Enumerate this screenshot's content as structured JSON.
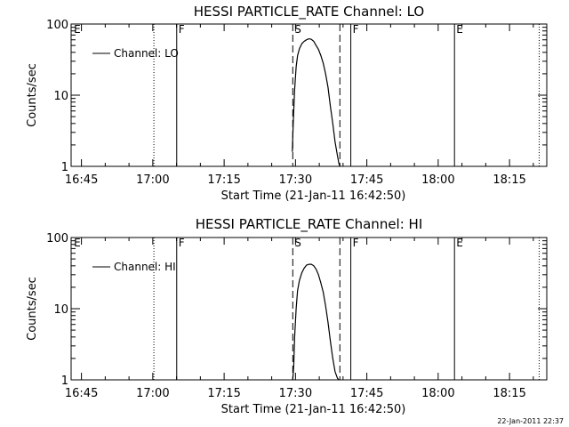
{
  "timestamp": "22-Jan-2011 22:37",
  "chart_data": [
    {
      "type": "line",
      "title": "HESSI PARTICLE_RATE Channel: LO",
      "xlabel": "Start Time (21-Jan-11 16:42:50)",
      "ylabel": "Counts/sec",
      "x_units": "minutes since 16:42:50",
      "xlim": [
        0,
        100
      ],
      "ylim": [
        1,
        100
      ],
      "yscale": "log",
      "x_ticks": [
        {
          "x": 2.17,
          "label": "16:45"
        },
        {
          "x": 17.17,
          "label": "17:00"
        },
        {
          "x": 32.17,
          "label": "17:15"
        },
        {
          "x": 47.17,
          "label": "17:30"
        },
        {
          "x": 62.17,
          "label": "17:45"
        },
        {
          "x": 77.17,
          "label": "18:00"
        },
        {
          "x": 92.17,
          "label": "18:15"
        }
      ],
      "y_ticks": [
        {
          "y": 1,
          "label": "1"
        },
        {
          "y": 10,
          "label": "10"
        },
        {
          "y": 100,
          "label": "100"
        }
      ],
      "legend": {
        "label": "Channel: LO",
        "position": "top-left"
      },
      "markers": [
        {
          "x": 0.2,
          "label": "E",
          "style": "none"
        },
        {
          "x": 17.4,
          "label": "",
          "style": "dotted"
        },
        {
          "x": 22.2,
          "label": "F",
          "style": "solid"
        },
        {
          "x": 46.6,
          "label": "S",
          "style": "dashed"
        },
        {
          "x": 56.5,
          "label": "",
          "style": "dashed"
        },
        {
          "x": 58.8,
          "label": "F",
          "style": "solid"
        },
        {
          "x": 80.6,
          "label": "E",
          "style": "solid"
        },
        {
          "x": 98.4,
          "label": "",
          "style": "dotted"
        }
      ],
      "series": [
        {
          "name": "Channel: LO",
          "x": [
            46.5,
            46.7,
            47.0,
            47.3,
            47.6,
            48.0,
            48.5,
            49.0,
            49.5,
            50.0,
            50.5,
            51.0,
            51.5,
            52.0,
            52.5,
            53.0,
            53.5,
            54.0,
            54.5,
            55.0,
            55.5,
            56.0,
            56.3,
            56.5
          ],
          "y": [
            1.6,
            4.0,
            12.0,
            25.0,
            36.0,
            45.0,
            53.0,
            57.0,
            60.0,
            62.0,
            61.0,
            57.0,
            50.0,
            44.0,
            36.0,
            28.0,
            20.0,
            13.0,
            7.0,
            4.0,
            2.2,
            1.4,
            1.1,
            1.0
          ]
        }
      ]
    },
    {
      "type": "line",
      "title": "HESSI PARTICLE_RATE Channel: HI",
      "xlabel": "Start Time (21-Jan-11 16:42:50)",
      "ylabel": "Counts/sec",
      "x_units": "minutes since 16:42:50",
      "xlim": [
        0,
        100
      ],
      "ylim": [
        1,
        100
      ],
      "yscale": "log",
      "x_ticks": [
        {
          "x": 2.17,
          "label": "16:45"
        },
        {
          "x": 17.17,
          "label": "17:00"
        },
        {
          "x": 32.17,
          "label": "17:15"
        },
        {
          "x": 47.17,
          "label": "17:30"
        },
        {
          "x": 62.17,
          "label": "17:45"
        },
        {
          "x": 77.17,
          "label": "18:00"
        },
        {
          "x": 92.17,
          "label": "18:15"
        }
      ],
      "y_ticks": [
        {
          "y": 1,
          "label": "1"
        },
        {
          "y": 10,
          "label": "10"
        },
        {
          "y": 100,
          "label": "100"
        }
      ],
      "legend": {
        "label": "Channel: HI",
        "position": "top-left"
      },
      "markers": [
        {
          "x": 0.2,
          "label": "E",
          "style": "none"
        },
        {
          "x": 17.4,
          "label": "",
          "style": "dotted"
        },
        {
          "x": 22.2,
          "label": "F",
          "style": "solid"
        },
        {
          "x": 46.6,
          "label": "S",
          "style": "dashed"
        },
        {
          "x": 56.5,
          "label": "",
          "style": "dashed"
        },
        {
          "x": 58.8,
          "label": "F",
          "style": "solid"
        },
        {
          "x": 80.6,
          "label": "E",
          "style": "solid"
        },
        {
          "x": 98.4,
          "label": "",
          "style": "dotted"
        }
      ],
      "series": [
        {
          "name": "Channel: HI",
          "x": [
            46.6,
            46.8,
            47.0,
            47.3,
            47.6,
            48.0,
            48.5,
            49.0,
            49.5,
            50.0,
            50.5,
            51.0,
            51.5,
            52.0,
            52.5,
            53.0,
            53.5,
            54.0,
            54.5,
            55.0,
            55.5,
            56.0,
            56.3
          ],
          "y": [
            1.0,
            1.6,
            4.0,
            10.0,
            18.0,
            25.0,
            32.0,
            37.0,
            41.0,
            42.0,
            42.0,
            40.0,
            36.0,
            30.0,
            23.0,
            17.0,
            11.0,
            6.5,
            3.5,
            2.0,
            1.3,
            1.05,
            1.0
          ]
        }
      ]
    }
  ]
}
